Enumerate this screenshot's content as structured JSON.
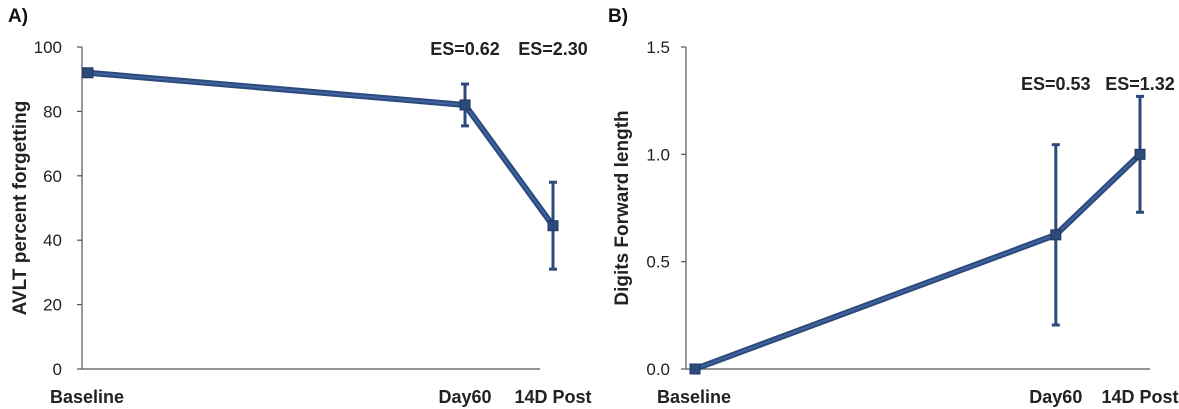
{
  "chart_data": [
    {
      "type": "line",
      "panel_label": "A)",
      "categories": [
        "Baseline",
        "Day60",
        "14D Post"
      ],
      "x_positions": [
        0,
        60,
        74
      ],
      "ylabel": "AVLT percent forgetting",
      "ylim": [
        0,
        100
      ],
      "yticks": [
        "0",
        "20",
        "40",
        "60",
        "80",
        "100"
      ],
      "values": [
        92,
        82,
        44.5
      ],
      "error": [
        1,
        6.5,
        13.5
      ],
      "annotations": [
        {
          "category": "Day60",
          "text": "ES=0.62"
        },
        {
          "category": "14D Post",
          "text": "ES=2.30"
        }
      ],
      "color": "#2c4a7c",
      "grid": false
    },
    {
      "type": "line",
      "panel_label": "B)",
      "categories": [
        "Baseline",
        "Day60",
        "14D Post"
      ],
      "x_positions": [
        0,
        60,
        74
      ],
      "ylabel": "Digits Forward length",
      "ylim": [
        0,
        1.5
      ],
      "yticks": [
        "0.0",
        "0.5",
        "1.0",
        "1.5"
      ],
      "values": [
        0,
        0.625,
        1.0
      ],
      "error": [
        0.01,
        0.42,
        0.27
      ],
      "annotations": [
        {
          "category": "Day60",
          "text": "ES=0.53"
        },
        {
          "category": "14D Post",
          "text": "ES=1.32"
        }
      ],
      "color": "#2c4a7c",
      "grid": false
    }
  ]
}
